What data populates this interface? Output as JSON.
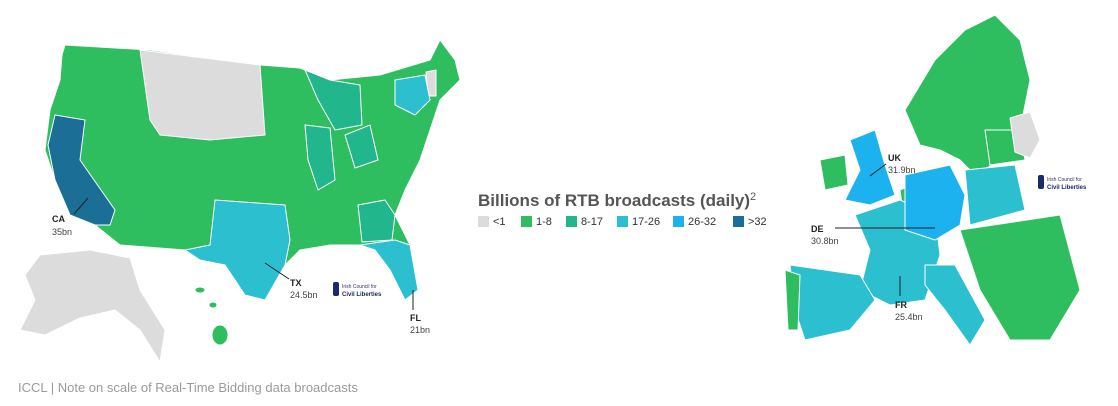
{
  "legend": {
    "title": "Billions of RTB broadcasts (daily)",
    "title_note": "2",
    "items": [
      {
        "label": "<1",
        "color": "#dcdcdc"
      },
      {
        "label": "1-8",
        "color": "#2ebd5f"
      },
      {
        "label": "8-17",
        "color": "#22b68c"
      },
      {
        "label": "17-26",
        "color": "#2bbfd0"
      },
      {
        "label": "26-32",
        "color": "#1cb2f0"
      },
      {
        "label": ">32",
        "color": "#1b6e95"
      }
    ]
  },
  "us_map": {
    "annotations": [
      {
        "code": "CA",
        "value": "35bn"
      },
      {
        "code": "TX",
        "value": "24.5bn"
      },
      {
        "code": "FL",
        "value": "21bn"
      }
    ],
    "logo": {
      "line1": "Irish Council for",
      "line2": "Civil Liberties"
    }
  },
  "europe_map": {
    "annotations": [
      {
        "code": "UK",
        "value": "31.9bn"
      },
      {
        "code": "DE",
        "value": "30.8bn"
      },
      {
        "code": "FR",
        "value": "25.4bn"
      }
    ],
    "logo": {
      "line1": "Irish Council for",
      "line2": "Civil Liberties"
    }
  },
  "footer": "ICCL | Note on scale of Real-Time Bidding data broadcasts"
}
